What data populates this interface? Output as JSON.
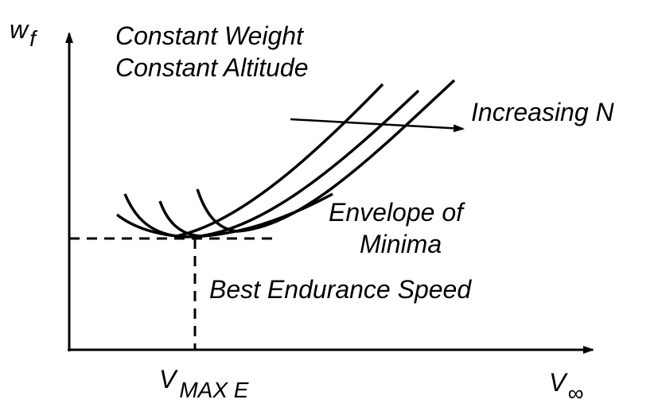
{
  "axes": {
    "y_label": "w",
    "y_label_sub": "f",
    "x_label": "V",
    "x_label_sub": "∞"
  },
  "titles": {
    "line1": "Constant Weight",
    "line2": "Constant Altitude"
  },
  "annotations": {
    "increasing": "Increasing N",
    "envelope_line1": "Envelope of",
    "envelope_line2": "Minima",
    "best_endurance": "Best Endurance Speed"
  },
  "markers": {
    "v_max_e": "V",
    "v_max_e_sub": "MAX E"
  },
  "colors": {
    "ink": "#000000",
    "background": "#ffffff"
  }
}
